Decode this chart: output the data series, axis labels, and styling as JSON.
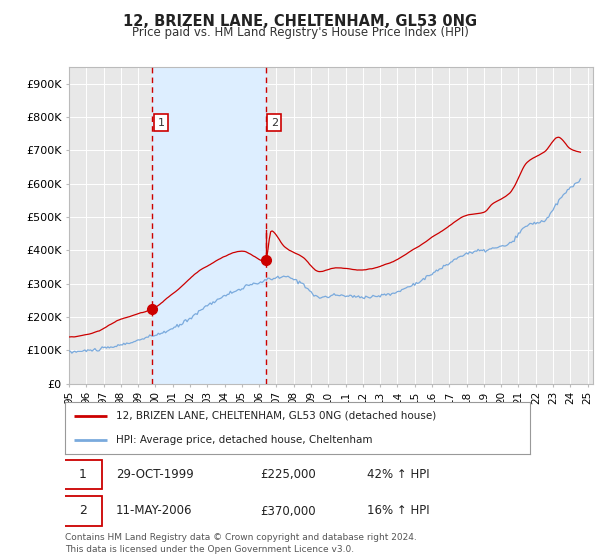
{
  "title": "12, BRIZEN LANE, CHELTENHAM, GL53 0NG",
  "subtitle": "Price paid vs. HM Land Registry's House Price Index (HPI)",
  "background_color": "#ffffff",
  "plot_background_color": "#e8e8e8",
  "grid_color": "#ffffff",
  "red_line_color": "#cc0000",
  "blue_line_color": "#7aaadd",
  "shade_color": "#ddeeff",
  "sale1": {
    "date": "29-OCT-1999",
    "price": 225000,
    "label": "1",
    "pct": "42% ↑ HPI"
  },
  "sale2": {
    "date": "11-MAY-2006",
    "price": 370000,
    "label": "2",
    "pct": "16% ↑ HPI"
  },
  "sale1_x": 1999.83,
  "sale2_x": 2006.37,
  "ylim": [
    0,
    950000
  ],
  "xlim": [
    1995.0,
    2025.3
  ],
  "yticks": [
    0,
    100000,
    200000,
    300000,
    400000,
    500000,
    600000,
    700000,
    800000,
    900000
  ],
  "ytick_labels": [
    "£0",
    "£100K",
    "£200K",
    "£300K",
    "£400K",
    "£500K",
    "£600K",
    "£700K",
    "£800K",
    "£900K"
  ],
  "xtick_years": [
    1995,
    1996,
    1997,
    1998,
    1999,
    2000,
    2001,
    2002,
    2003,
    2004,
    2005,
    2006,
    2007,
    2008,
    2009,
    2010,
    2011,
    2012,
    2013,
    2014,
    2015,
    2016,
    2017,
    2018,
    2019,
    2020,
    2021,
    2022,
    2023,
    2024,
    2025
  ],
  "legend_red_label": "12, BRIZEN LANE, CHELTENHAM, GL53 0NG (detached house)",
  "legend_blue_label": "HPI: Average price, detached house, Cheltenham",
  "footer": "Contains HM Land Registry data © Crown copyright and database right 2024.\nThis data is licensed under the Open Government Licence v3.0."
}
